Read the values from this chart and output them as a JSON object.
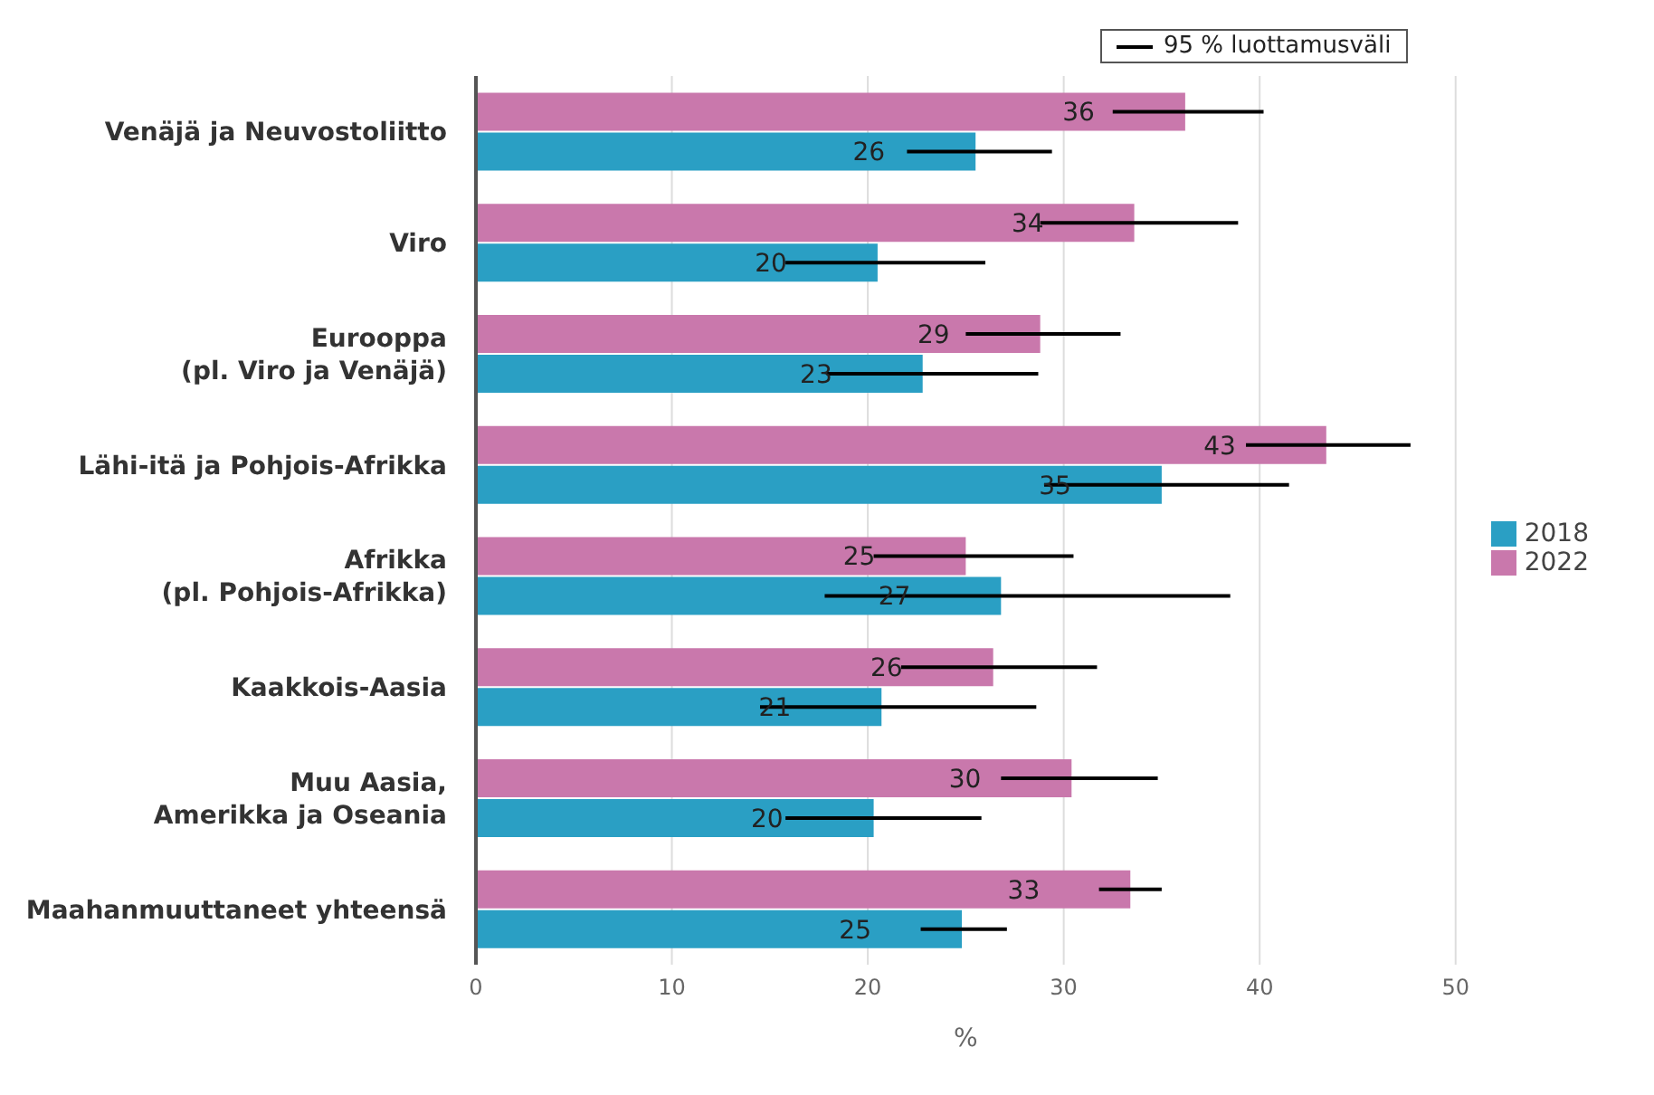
{
  "chart_data": {
    "type": "bar",
    "orientation": "horizontal",
    "xlabel": "%",
    "categories": [
      "Venäjä ja Neuvostoliitto",
      "Viro",
      "Eurooppa\n(pl. Viro ja Venäjä)",
      "Lähi-itä ja Pohjois-Afrikka",
      "Afrikka\n(pl. Pohjois-Afrikka)",
      "Kaakkois-Aasia",
      "Muu Aasia,\nAmerikka ja Oseania",
      "Maahanmuuttaneet yhteensä"
    ],
    "series": [
      {
        "name": "2022",
        "color": "#c978ac",
        "values": [
          36.2,
          33.6,
          28.8,
          43.4,
          25.0,
          26.4,
          30.4,
          33.4
        ],
        "value_labels": [
          "36",
          "34",
          "29",
          "43",
          "25",
          "26",
          "30",
          "33"
        ],
        "errors": [
          [
            32.5,
            40.2
          ],
          [
            28.8,
            38.9
          ],
          [
            25.0,
            32.9
          ],
          [
            39.3,
            47.7
          ],
          [
            20.3,
            30.5
          ],
          [
            21.7,
            31.7
          ],
          [
            26.8,
            34.8
          ],
          [
            31.8,
            35.0
          ]
        ]
      },
      {
        "name": "2018",
        "color": "#2a9fc4",
        "values": [
          25.5,
          20.5,
          22.8,
          35.0,
          26.8,
          20.7,
          20.3,
          24.8
        ],
        "value_labels": [
          "26",
          "20",
          "23",
          "35",
          "27",
          "21",
          "20",
          "25"
        ],
        "errors": [
          [
            22.0,
            29.4
          ],
          [
            15.8,
            26.0
          ],
          [
            17.9,
            28.7
          ],
          [
            29.0,
            41.5
          ],
          [
            17.8,
            38.5
          ],
          [
            14.5,
            28.6
          ],
          [
            15.8,
            25.8
          ],
          [
            22.7,
            27.1
          ]
        ]
      }
    ],
    "xlim": [
      0,
      50
    ],
    "xticks": [
      0,
      10,
      20,
      30,
      40,
      50
    ],
    "grid": "x",
    "legend": "right",
    "annotations": [
      "95 % luottamusväli"
    ]
  }
}
